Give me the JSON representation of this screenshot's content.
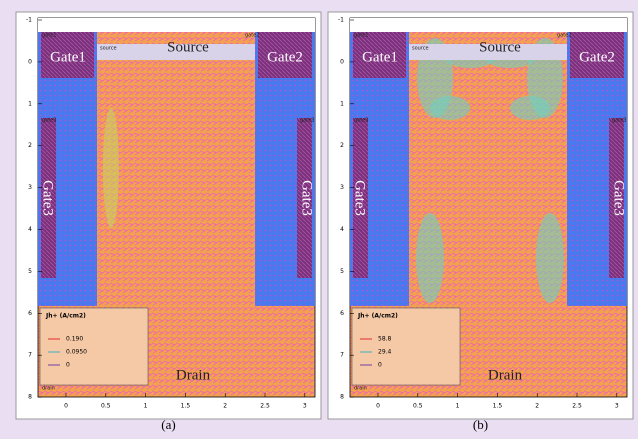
{
  "panels": [
    {
      "caption": "(a)",
      "labels": {
        "source": "Source",
        "gate1": "Gate1",
        "gate2": "Gate2",
        "gate3_left": "Gate3",
        "gate3_right": "Gate3",
        "drain": "Drain",
        "source_tag": "source",
        "gate1_tag": "gate1",
        "gate2_tag": "gate2",
        "gate3_left_tag": "gate3",
        "gate3_right_tag": "gate3",
        "drain_tag": "drain"
      },
      "legend": {
        "title": "Jh+ (A/cm2)",
        "entries": [
          "0.190",
          "0.0950",
          "0"
        ]
      },
      "xticks": [
        0,
        0.5,
        1,
        1.5,
        2,
        2.5,
        3
      ],
      "yticks": [
        -1,
        0,
        1,
        2,
        3,
        4,
        5,
        6,
        7,
        8
      ]
    },
    {
      "caption": "(b)",
      "labels": {
        "source": "Source",
        "gate1": "Gate1",
        "gate2": "Gate2",
        "gate3_left": "Gate3",
        "gate3_right": "Gate3",
        "drain": "Drain",
        "source_tag": "source",
        "gate1_tag": "gate1",
        "gate2_tag": "gate2",
        "gate3_left_tag": "gate3",
        "gate3_right_tag": "gate3",
        "drain_tag": "drain"
      },
      "legend": {
        "title": "Jh+ (A/cm2)",
        "entries": [
          "58.8",
          "29.4",
          "0"
        ]
      },
      "xticks": [
        0,
        0.5,
        1,
        1.5,
        2,
        2.5,
        3
      ],
      "yticks": [
        -1,
        0,
        1,
        2,
        3,
        4,
        5,
        6,
        7,
        8
      ]
    }
  ]
}
